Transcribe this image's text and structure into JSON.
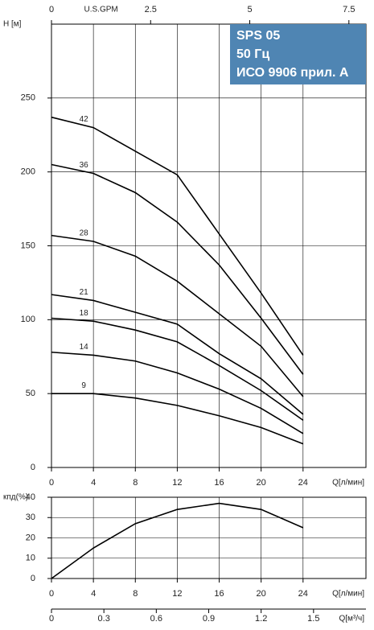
{
  "chart_data": [
    {
      "type": "line",
      "ylabel": "H [м]",
      "xlabel": "Q[л/мин]",
      "annotations": [
        "SPS 05",
        "50 Гц",
        "ИСО 9906 прил. A"
      ],
      "x": [
        0,
        4,
        8,
        12,
        16,
        20,
        24
      ],
      "xlim": [
        0,
        30
      ],
      "xticks": [
        0,
        4,
        8,
        12,
        16,
        20,
        24
      ],
      "ylim": [
        0,
        300
      ],
      "yticks": [
        0,
        50,
        100,
        150,
        200,
        250
      ],
      "grid": true,
      "x2": {
        "position": "top",
        "label": "U.S.GPM",
        "xlim": [
          0,
          7.93
        ],
        "xticks": [
          0,
          2.5,
          5,
          7.5
        ]
      },
      "series": [
        {
          "name": "42",
          "color": "#000000",
          "values": [
            237,
            230,
            214,
            198,
            158,
            118,
            76
          ]
        },
        {
          "name": "36",
          "color": "#000000",
          "values": [
            205,
            199,
            186,
            166,
            137,
            101,
            63
          ]
        },
        {
          "name": "28",
          "color": "#000000",
          "values": [
            157,
            153,
            143,
            126,
            104,
            82,
            48
          ]
        },
        {
          "name": "21",
          "color": "#000000",
          "values": [
            117,
            113,
            105,
            97,
            77,
            60,
            36
          ]
        },
        {
          "name": "18",
          "color": "#000000",
          "values": [
            101,
            99,
            93,
            85,
            69,
            52,
            32
          ]
        },
        {
          "name": "14",
          "color": "#000000",
          "values": [
            78,
            76,
            72,
            64,
            53,
            40,
            23
          ]
        },
        {
          "name": "9",
          "color": "#000000",
          "values": [
            50,
            50,
            47,
            42,
            35,
            27,
            16
          ]
        }
      ]
    },
    {
      "type": "line",
      "ylabel": "кпд(%)",
      "xlabel": "Q[л/мин]",
      "x": [
        0,
        4,
        8,
        12,
        16,
        20,
        24
      ],
      "xlim": [
        0,
        30
      ],
      "xticks": [
        0,
        4,
        8,
        12,
        16,
        20,
        24
      ],
      "ylim": [
        0,
        40
      ],
      "yticks": [
        0,
        10,
        20,
        30,
        40
      ],
      "grid": true,
      "x2": {
        "position": "bottom",
        "label": "Q[м³/ч]",
        "xlim": [
          0,
          1.8
        ],
        "xticks": [
          0,
          0.3,
          0.6,
          0.9,
          1.2,
          1.5
        ]
      },
      "series": [
        {
          "color": "#000000",
          "values": [
            0,
            15,
            27,
            34,
            37,
            34,
            25
          ]
        }
      ]
    }
  ]
}
